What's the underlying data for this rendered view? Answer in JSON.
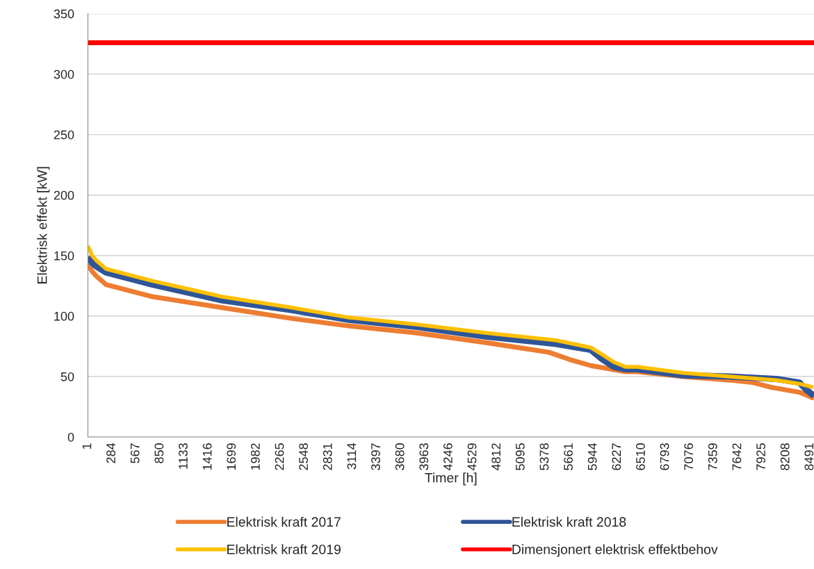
{
  "chart_data": {
    "type": "line",
    "xlabel": "Timer [h]",
    "ylabel": "Elektrisk effekt [kW]",
    "xlim": [
      1,
      8537
    ],
    "xticks": [
      1,
      284,
      567,
      850,
      1133,
      1416,
      1699,
      1982,
      2265,
      2548,
      2831,
      3114,
      3397,
      3680,
      3963,
      4246,
      4529,
      4812,
      5095,
      5378,
      5661,
      5944,
      6227,
      6510,
      6793,
      7076,
      7359,
      7642,
      7925,
      8208,
      8491
    ],
    "ylim": [
      0,
      350
    ],
    "yticks": [
      0,
      50,
      100,
      150,
      200,
      250,
      300,
      350
    ],
    "grid": "y",
    "legend": "bottom",
    "marker": "none",
    "line_style": "solid",
    "series": [
      {
        "name": "Elektrisk kraft 2017",
        "color": "#ed7d31",
        "x": [
          1,
          50,
          100,
          214,
          761,
          1579,
          2397,
          3051,
          3868,
          4686,
          5422,
          5667,
          5913,
          6321,
          6460,
          7000,
          7548,
          7818,
          8039,
          8366,
          8537
        ],
        "values": [
          143,
          137,
          133,
          126,
          116,
          107,
          98,
          92,
          86,
          78,
          70,
          64,
          59,
          54,
          54,
          50,
          47,
          45,
          41,
          37,
          32
        ]
      },
      {
        "name": "Elektrisk kraft 2018",
        "color": "#2f5597",
        "x": [
          1,
          50,
          100,
          214,
          761,
          1579,
          2397,
          3051,
          3868,
          4686,
          5504,
          5913,
          6052,
          6182,
          6321,
          6460,
          7000,
          7548,
          8096,
          8366,
          8447,
          8537
        ],
        "values": [
          149,
          144,
          141,
          136,
          126,
          113,
          105,
          97,
          91,
          83,
          77,
          72,
          64,
          58,
          56,
          56,
          51,
          50,
          48,
          45,
          39,
          34
        ]
      },
      {
        "name": "Elektrisk kraft 2019",
        "color": "#ffc000",
        "x": [
          1,
          50,
          100,
          214,
          761,
          1579,
          2397,
          3051,
          3868,
          4686,
          5504,
          5913,
          6052,
          6182,
          6321,
          6460,
          7000,
          7548,
          8096,
          8366,
          8529
        ],
        "values": [
          158,
          150,
          146,
          139,
          129,
          116,
          107,
          99,
          93,
          86,
          80,
          74,
          68,
          62,
          58,
          58,
          53,
          50,
          47,
          44,
          41
        ]
      },
      {
        "name": "Dimensjonert elektrisk effektbehov",
        "color": "#ff0000",
        "x": [
          1,
          8537
        ],
        "values": [
          326,
          326
        ]
      }
    ]
  }
}
